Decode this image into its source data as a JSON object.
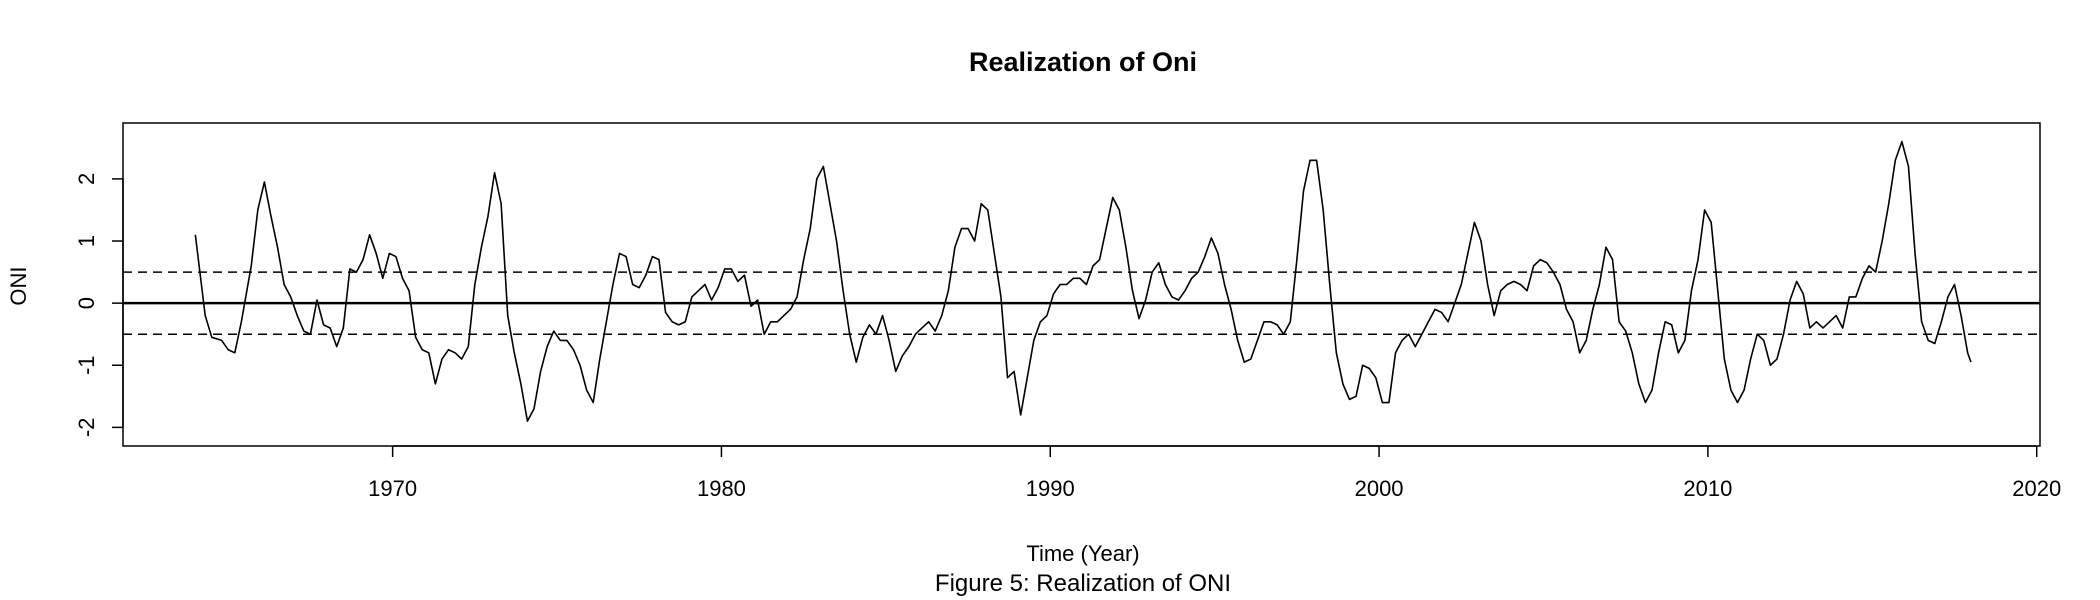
{
  "chart_data": {
    "type": "line",
    "title": "Realization of Oni",
    "xlabel": "Time (Year)",
    "ylabel": "ONI",
    "caption": "Figure 5: Realization of ONI",
    "xlim": [
      1961.8,
      2020.1
    ],
    "ylim": [
      -2.3,
      2.9
    ],
    "x_ticks": [
      1970,
      1980,
      1990,
      2000,
      2010,
      2020
    ],
    "x_tick_labels": [
      "1970",
      "1980",
      "1990",
      "2000",
      "2010",
      "2020"
    ],
    "y_ticks": [
      -2,
      -1,
      0,
      1,
      2
    ],
    "y_tick_labels": [
      "-2",
      "-1",
      "0",
      "1",
      "2"
    ],
    "reference_lines": [
      {
        "y": 0,
        "style": "solid"
      },
      {
        "y": 0.5,
        "style": "dashed"
      },
      {
        "y": -0.5,
        "style": "dashed"
      }
    ],
    "series": [
      {
        "color": "#000000",
        "points": [
          [
            1964.0,
            1.1
          ],
          [
            1964.3,
            -0.2
          ],
          [
            1964.5,
            -0.55
          ],
          [
            1964.8,
            -0.6
          ],
          [
            1965.0,
            -0.75
          ],
          [
            1965.2,
            -0.8
          ],
          [
            1965.4,
            -0.3
          ],
          [
            1965.7,
            0.6
          ],
          [
            1965.9,
            1.5
          ],
          [
            1966.1,
            1.95
          ],
          [
            1966.3,
            1.4
          ],
          [
            1966.5,
            0.9
          ],
          [
            1966.7,
            0.3
          ],
          [
            1966.9,
            0.1
          ],
          [
            1967.1,
            -0.2
          ],
          [
            1967.3,
            -0.45
          ],
          [
            1967.5,
            -0.5
          ],
          [
            1967.7,
            0.05
          ],
          [
            1967.9,
            -0.35
          ],
          [
            1968.1,
            -0.4
          ],
          [
            1968.3,
            -0.7
          ],
          [
            1968.5,
            -0.4
          ],
          [
            1968.7,
            0.55
          ],
          [
            1968.9,
            0.5
          ],
          [
            1969.1,
            0.7
          ],
          [
            1969.3,
            1.1
          ],
          [
            1969.5,
            0.8
          ],
          [
            1969.7,
            0.4
          ],
          [
            1969.9,
            0.8
          ],
          [
            1970.1,
            0.75
          ],
          [
            1970.3,
            0.4
          ],
          [
            1970.5,
            0.2
          ],
          [
            1970.7,
            -0.55
          ],
          [
            1970.9,
            -0.75
          ],
          [
            1971.1,
            -0.8
          ],
          [
            1971.3,
            -1.3
          ],
          [
            1971.5,
            -0.9
          ],
          [
            1971.7,
            -0.75
          ],
          [
            1971.9,
            -0.8
          ],
          [
            1972.1,
            -0.9
          ],
          [
            1972.3,
            -0.7
          ],
          [
            1972.5,
            0.3
          ],
          [
            1972.7,
            0.9
          ],
          [
            1972.9,
            1.4
          ],
          [
            1973.1,
            2.1
          ],
          [
            1973.3,
            1.6
          ],
          [
            1973.5,
            -0.2
          ],
          [
            1973.7,
            -0.8
          ],
          [
            1973.9,
            -1.3
          ],
          [
            1974.1,
            -1.9
          ],
          [
            1974.3,
            -1.7
          ],
          [
            1974.5,
            -1.1
          ],
          [
            1974.7,
            -0.7
          ],
          [
            1974.9,
            -0.45
          ],
          [
            1975.1,
            -0.6
          ],
          [
            1975.3,
            -0.6
          ],
          [
            1975.5,
            -0.75
          ],
          [
            1975.7,
            -1.0
          ],
          [
            1975.9,
            -1.4
          ],
          [
            1976.1,
            -1.6
          ],
          [
            1976.3,
            -0.9
          ],
          [
            1976.5,
            -0.3
          ],
          [
            1976.7,
            0.3
          ],
          [
            1976.9,
            0.8
          ],
          [
            1977.1,
            0.75
          ],
          [
            1977.3,
            0.3
          ],
          [
            1977.5,
            0.25
          ],
          [
            1977.7,
            0.45
          ],
          [
            1977.9,
            0.75
          ],
          [
            1978.1,
            0.7
          ],
          [
            1978.3,
            -0.15
          ],
          [
            1978.5,
            -0.3
          ],
          [
            1978.7,
            -0.35
          ],
          [
            1978.9,
            -0.3
          ],
          [
            1979.1,
            0.1
          ],
          [
            1979.3,
            0.2
          ],
          [
            1979.5,
            0.3
          ],
          [
            1979.7,
            0.05
          ],
          [
            1979.9,
            0.25
          ],
          [
            1980.1,
            0.55
          ],
          [
            1980.3,
            0.55
          ],
          [
            1980.5,
            0.35
          ],
          [
            1980.7,
            0.45
          ],
          [
            1980.9,
            -0.05
          ],
          [
            1981.1,
            0.05
          ],
          [
            1981.3,
            -0.5
          ],
          [
            1981.5,
            -0.3
          ],
          [
            1981.7,
            -0.3
          ],
          [
            1981.9,
            -0.2
          ],
          [
            1982.1,
            -0.1
          ],
          [
            1982.3,
            0.1
          ],
          [
            1982.5,
            0.7
          ],
          [
            1982.7,
            1.2
          ],
          [
            1982.9,
            2.0
          ],
          [
            1983.1,
            2.2
          ],
          [
            1983.3,
            1.6
          ],
          [
            1983.5,
            1.0
          ],
          [
            1983.7,
            0.2
          ],
          [
            1983.9,
            -0.5
          ],
          [
            1984.1,
            -0.95
          ],
          [
            1984.3,
            -0.55
          ],
          [
            1984.5,
            -0.35
          ],
          [
            1984.7,
            -0.5
          ],
          [
            1984.9,
            -0.2
          ],
          [
            1985.1,
            -0.6
          ],
          [
            1985.3,
            -1.1
          ],
          [
            1985.5,
            -0.85
          ],
          [
            1985.7,
            -0.7
          ],
          [
            1985.9,
            -0.5
          ],
          [
            1986.1,
            -0.4
          ],
          [
            1986.3,
            -0.3
          ],
          [
            1986.5,
            -0.45
          ],
          [
            1986.7,
            -0.2
          ],
          [
            1986.9,
            0.2
          ],
          [
            1987.1,
            0.9
          ],
          [
            1987.3,
            1.2
          ],
          [
            1987.5,
            1.2
          ],
          [
            1987.7,
            1.0
          ],
          [
            1987.9,
            1.6
          ],
          [
            1988.1,
            1.5
          ],
          [
            1988.3,
            0.8
          ],
          [
            1988.5,
            0.1
          ],
          [
            1988.7,
            -1.2
          ],
          [
            1988.9,
            -1.1
          ],
          [
            1989.1,
            -1.8
          ],
          [
            1989.3,
            -1.2
          ],
          [
            1989.5,
            -0.6
          ],
          [
            1989.7,
            -0.3
          ],
          [
            1989.9,
            -0.2
          ],
          [
            1990.1,
            0.15
          ],
          [
            1990.3,
            0.3
          ],
          [
            1990.5,
            0.3
          ],
          [
            1990.7,
            0.4
          ],
          [
            1990.9,
            0.4
          ],
          [
            1991.1,
            0.3
          ],
          [
            1991.3,
            0.6
          ],
          [
            1991.5,
            0.7
          ],
          [
            1991.7,
            1.2
          ],
          [
            1991.9,
            1.7
          ],
          [
            1992.1,
            1.5
          ],
          [
            1992.3,
            0.9
          ],
          [
            1992.5,
            0.2
          ],
          [
            1992.7,
            -0.25
          ],
          [
            1992.9,
            0.05
          ],
          [
            1993.1,
            0.5
          ],
          [
            1993.3,
            0.65
          ],
          [
            1993.5,
            0.3
          ],
          [
            1993.7,
            0.1
          ],
          [
            1993.9,
            0.05
          ],
          [
            1994.1,
            0.2
          ],
          [
            1994.3,
            0.4
          ],
          [
            1994.5,
            0.5
          ],
          [
            1994.7,
            0.75
          ],
          [
            1994.9,
            1.05
          ],
          [
            1995.1,
            0.8
          ],
          [
            1995.3,
            0.3
          ],
          [
            1995.5,
            -0.1
          ],
          [
            1995.7,
            -0.6
          ],
          [
            1995.9,
            -0.95
          ],
          [
            1996.1,
            -0.9
          ],
          [
            1996.3,
            -0.6
          ],
          [
            1996.5,
            -0.3
          ],
          [
            1996.7,
            -0.3
          ],
          [
            1996.9,
            -0.35
          ],
          [
            1997.1,
            -0.5
          ],
          [
            1997.3,
            -0.3
          ],
          [
            1997.5,
            0.7
          ],
          [
            1997.7,
            1.8
          ],
          [
            1997.9,
            2.3
          ],
          [
            1998.1,
            2.3
          ],
          [
            1998.3,
            1.5
          ],
          [
            1998.5,
            0.3
          ],
          [
            1998.7,
            -0.8
          ],
          [
            1998.9,
            -1.3
          ],
          [
            1999.1,
            -1.55
          ],
          [
            1999.3,
            -1.5
          ],
          [
            1999.5,
            -1.0
          ],
          [
            1999.7,
            -1.05
          ],
          [
            1999.9,
            -1.2
          ],
          [
            2000.1,
            -1.6
          ],
          [
            2000.3,
            -1.6
          ],
          [
            2000.5,
            -0.8
          ],
          [
            2000.7,
            -0.6
          ],
          [
            2000.9,
            -0.5
          ],
          [
            2001.1,
            -0.7
          ],
          [
            2001.3,
            -0.5
          ],
          [
            2001.5,
            -0.3
          ],
          [
            2001.7,
            -0.1
          ],
          [
            2001.9,
            -0.15
          ],
          [
            2002.1,
            -0.3
          ],
          [
            2002.3,
            0.0
          ],
          [
            2002.5,
            0.3
          ],
          [
            2002.7,
            0.8
          ],
          [
            2002.9,
            1.3
          ],
          [
            2003.1,
            1.0
          ],
          [
            2003.3,
            0.3
          ],
          [
            2003.5,
            -0.2
          ],
          [
            2003.7,
            0.2
          ],
          [
            2003.9,
            0.3
          ],
          [
            2004.1,
            0.35
          ],
          [
            2004.3,
            0.3
          ],
          [
            2004.5,
            0.2
          ],
          [
            2004.7,
            0.6
          ],
          [
            2004.9,
            0.7
          ],
          [
            2005.1,
            0.65
          ],
          [
            2005.3,
            0.5
          ],
          [
            2005.5,
            0.3
          ],
          [
            2005.7,
            -0.1
          ],
          [
            2005.9,
            -0.3
          ],
          [
            2006.1,
            -0.8
          ],
          [
            2006.3,
            -0.6
          ],
          [
            2006.5,
            -0.1
          ],
          [
            2006.7,
            0.3
          ],
          [
            2006.9,
            0.9
          ],
          [
            2007.1,
            0.7
          ],
          [
            2007.3,
            -0.3
          ],
          [
            2007.5,
            -0.45
          ],
          [
            2007.7,
            -0.8
          ],
          [
            2007.9,
            -1.3
          ],
          [
            2008.1,
            -1.6
          ],
          [
            2008.3,
            -1.4
          ],
          [
            2008.5,
            -0.8
          ],
          [
            2008.7,
            -0.3
          ],
          [
            2008.9,
            -0.35
          ],
          [
            2009.1,
            -0.8
          ],
          [
            2009.3,
            -0.6
          ],
          [
            2009.5,
            0.2
          ],
          [
            2009.7,
            0.7
          ],
          [
            2009.9,
            1.5
          ],
          [
            2010.1,
            1.3
          ],
          [
            2010.3,
            0.2
          ],
          [
            2010.5,
            -0.9
          ],
          [
            2010.7,
            -1.4
          ],
          [
            2010.9,
            -1.6
          ],
          [
            2011.1,
            -1.4
          ],
          [
            2011.3,
            -0.9
          ],
          [
            2011.5,
            -0.5
          ],
          [
            2011.7,
            -0.6
          ],
          [
            2011.9,
            -1.0
          ],
          [
            2012.1,
            -0.9
          ],
          [
            2012.3,
            -0.5
          ],
          [
            2012.5,
            0.05
          ],
          [
            2012.7,
            0.35
          ],
          [
            2012.9,
            0.15
          ],
          [
            2013.1,
            -0.4
          ],
          [
            2013.3,
            -0.3
          ],
          [
            2013.5,
            -0.4
          ],
          [
            2013.7,
            -0.3
          ],
          [
            2013.9,
            -0.2
          ],
          [
            2014.1,
            -0.4
          ],
          [
            2014.3,
            0.1
          ],
          [
            2014.5,
            0.1
          ],
          [
            2014.7,
            0.4
          ],
          [
            2014.9,
            0.6
          ],
          [
            2015.1,
            0.5
          ],
          [
            2015.3,
            1.0
          ],
          [
            2015.5,
            1.6
          ],
          [
            2015.7,
            2.3
          ],
          [
            2015.9,
            2.6
          ],
          [
            2016.1,
            2.2
          ],
          [
            2016.3,
            0.8
          ],
          [
            2016.5,
            -0.3
          ],
          [
            2016.7,
            -0.6
          ],
          [
            2016.9,
            -0.65
          ],
          [
            2017.1,
            -0.3
          ],
          [
            2017.3,
            0.1
          ],
          [
            2017.5,
            0.3
          ],
          [
            2017.7,
            -0.2
          ],
          [
            2017.9,
            -0.8
          ],
          [
            2018.0,
            -0.95
          ]
        ]
      }
    ]
  }
}
